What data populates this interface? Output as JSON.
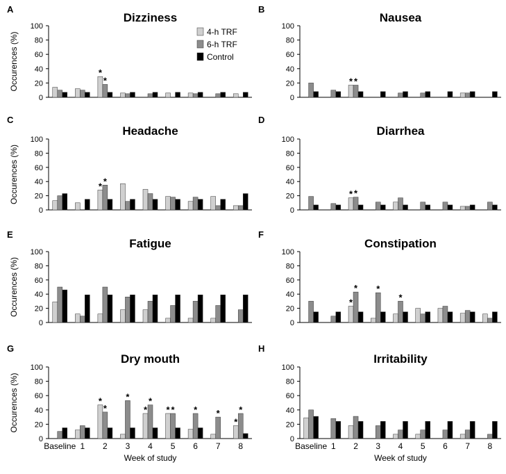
{
  "figure": {
    "categories": [
      "Baseline",
      "1",
      "2",
      "3",
      "4",
      "5",
      "6",
      "7",
      "8"
    ],
    "xlabel": "Week of study",
    "ylabel": "Occurences (%)",
    "ylim": [
      0,
      100
    ],
    "yticks": [
      "0",
      "20",
      "40",
      "60",
      "80",
      "100"
    ],
    "legend": [
      "4-h TRF",
      "6-h TRF",
      "Control"
    ],
    "series_colors": [
      "#d0d0d0",
      "#8c8c8c",
      "#000000"
    ],
    "star": "*"
  },
  "chart_data": [
    {
      "type": "bar",
      "panel": "A",
      "title": "Dizziness",
      "legend": "top-right",
      "categories": [
        "Baseline",
        "1",
        "2",
        "3",
        "4",
        "5",
        "6",
        "7",
        "8"
      ],
      "ylim": [
        0,
        100
      ],
      "series": [
        {
          "name": "4-h TRF",
          "values": [
            14,
            12,
            29,
            6,
            0,
            6,
            6,
            0,
            5
          ]
        },
        {
          "name": "6-h TRF",
          "values": [
            10,
            10,
            18,
            5,
            5,
            0,
            5,
            5,
            0
          ]
        },
        {
          "name": "Control",
          "values": [
            7,
            7,
            7,
            7,
            7,
            7,
            7,
            7,
            7
          ]
        }
      ],
      "stars": [
        [
          2,
          0
        ],
        [
          2,
          1
        ]
      ]
    },
    {
      "type": "bar",
      "panel": "B",
      "title": "Nausea",
      "categories": [
        "Baseline",
        "1",
        "2",
        "3",
        "4",
        "5",
        "6",
        "7",
        "8"
      ],
      "ylim": [
        0,
        100
      ],
      "series": [
        {
          "name": "4-h TRF",
          "values": [
            0,
            0,
            17,
            0,
            0,
            0,
            0,
            6,
            0
          ]
        },
        {
          "name": "6-h TRF",
          "values": [
            20,
            10,
            17,
            0,
            6,
            6,
            0,
            6,
            0
          ]
        },
        {
          "name": "Control",
          "values": [
            8,
            8,
            8,
            8,
            8,
            8,
            8,
            8,
            8
          ]
        }
      ],
      "stars": [
        [
          2,
          0
        ],
        [
          2,
          1
        ]
      ]
    },
    {
      "type": "bar",
      "panel": "C",
      "title": "Headache",
      "categories": [
        "Baseline",
        "1",
        "2",
        "3",
        "4",
        "5",
        "6",
        "7",
        "8"
      ],
      "ylim": [
        0,
        100
      ],
      "series": [
        {
          "name": "4-h TRF",
          "values": [
            13,
            10,
            28,
            37,
            29,
            19,
            12,
            19,
            6
          ]
        },
        {
          "name": "6-h TRF",
          "values": [
            20,
            0,
            35,
            12,
            23,
            18,
            18,
            6,
            6
          ]
        },
        {
          "name": "Control",
          "values": [
            23,
            15,
            15,
            15,
            15,
            15,
            15,
            15,
            23
          ]
        }
      ],
      "stars": [
        [
          2,
          0
        ],
        [
          2,
          1
        ]
      ]
    },
    {
      "type": "bar",
      "panel": "D",
      "title": "Diarrhea",
      "categories": [
        "Baseline",
        "1",
        "2",
        "3",
        "4",
        "5",
        "6",
        "7",
        "8"
      ],
      "ylim": [
        0,
        100
      ],
      "series": [
        {
          "name": "4-h TRF",
          "values": [
            0,
            0,
            17,
            0,
            11,
            0,
            0,
            5,
            0
          ]
        },
        {
          "name": "6-h TRF",
          "values": [
            19,
            9,
            18,
            11,
            17,
            11,
            11,
            5,
            11
          ]
        },
        {
          "name": "Control",
          "values": [
            7,
            7,
            7,
            7,
            7,
            7,
            7,
            7,
            7
          ]
        }
      ],
      "stars": [
        [
          2,
          0
        ],
        [
          2,
          1
        ]
      ]
    },
    {
      "type": "bar",
      "panel": "E",
      "title": "Fatigue",
      "categories": [
        "Baseline",
        "1",
        "2",
        "3",
        "4",
        "5",
        "6",
        "7",
        "8"
      ],
      "ylim": [
        0,
        100
      ],
      "series": [
        {
          "name": "4-h TRF",
          "values": [
            29,
            12,
            12,
            18,
            18,
            6,
            6,
            6,
            0
          ]
        },
        {
          "name": "6-h TRF",
          "values": [
            50,
            9,
            50,
            36,
            30,
            24,
            30,
            24,
            18
          ]
        },
        {
          "name": "Control",
          "values": [
            46,
            39,
            39,
            39,
            39,
            39,
            39,
            39,
            39
          ]
        }
      ],
      "stars": []
    },
    {
      "type": "bar",
      "panel": "F",
      "title": "Constipation",
      "categories": [
        "Baseline",
        "1",
        "2",
        "3",
        "4",
        "5",
        "6",
        "7",
        "8"
      ],
      "ylim": [
        0,
        100
      ],
      "series": [
        {
          "name": "4-h TRF",
          "values": [
            0,
            0,
            23,
            6,
            12,
            20,
            20,
            13,
            12
          ]
        },
        {
          "name": "6-h TRF",
          "values": [
            30,
            9,
            43,
            42,
            30,
            12,
            23,
            17,
            6
          ]
        },
        {
          "name": "Control",
          "values": [
            15,
            15,
            15,
            15,
            15,
            15,
            15,
            15,
            15
          ]
        }
      ],
      "stars": [
        [
          2,
          0
        ],
        [
          2,
          1
        ],
        [
          3,
          1
        ],
        [
          4,
          1
        ]
      ]
    },
    {
      "type": "bar",
      "panel": "G",
      "title": "Dry mouth",
      "categories": [
        "Baseline",
        "1",
        "2",
        "3",
        "4",
        "5",
        "6",
        "7",
        "8"
      ],
      "ylim": [
        0,
        100
      ],
      "series": [
        {
          "name": "4-h TRF",
          "values": [
            0,
            12,
            47,
            6,
            35,
            35,
            13,
            6,
            18
          ]
        },
        {
          "name": "6-h TRF",
          "values": [
            10,
            18,
            37,
            53,
            47,
            35,
            35,
            30,
            35
          ]
        },
        {
          "name": "Control",
          "values": [
            15,
            15,
            15,
            15,
            15,
            15,
            15,
            0,
            7
          ]
        }
      ],
      "stars": [
        [
          2,
          0
        ],
        [
          2,
          1
        ],
        [
          3,
          1
        ],
        [
          4,
          0
        ],
        [
          4,
          1
        ],
        [
          5,
          0
        ],
        [
          5,
          1
        ],
        [
          6,
          1
        ],
        [
          7,
          1
        ],
        [
          8,
          0
        ],
        [
          8,
          1
        ]
      ]
    },
    {
      "type": "bar",
      "panel": "H",
      "title": "Irritability",
      "categories": [
        "Baseline",
        "1",
        "2",
        "3",
        "4",
        "5",
        "6",
        "7",
        "8"
      ],
      "ylim": [
        0,
        100
      ],
      "series": [
        {
          "name": "4-h TRF",
          "values": [
            29,
            0,
            18,
            0,
            6,
            6,
            0,
            6,
            0
          ]
        },
        {
          "name": "6-h TRF",
          "values": [
            40,
            28,
            31,
            18,
            12,
            12,
            12,
            12,
            6
          ]
        },
        {
          "name": "Control",
          "values": [
            31,
            24,
            24,
            24,
            24,
            24,
            24,
            24,
            24
          ]
        }
      ],
      "stars": []
    }
  ]
}
